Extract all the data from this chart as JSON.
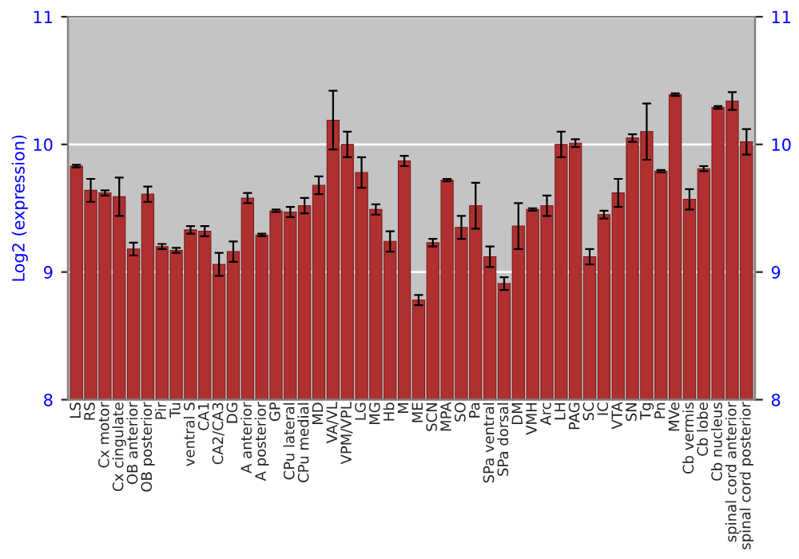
{
  "chart_data": {
    "type": "bar",
    "ylabel": "Log2 (expression)",
    "categories": [
      "LS",
      "RS",
      "Cx motor",
      "Cx cingulate",
      "OB anterior",
      "OB posterior",
      "Pir",
      "Tu",
      "ventral S",
      "CA1",
      "CA2/CA3",
      "DG",
      "A anterior",
      "A posterior",
      "GP",
      "CPu lateral",
      "CPu medial",
      "MD",
      "VA/VL",
      "VPM/VPL",
      "LG",
      "MG",
      "Hb",
      "M",
      "ME",
      "SCN",
      "MPA",
      "SO",
      "Pa",
      "SPa ventral",
      "SPa dorsal",
      "DM",
      "VMH",
      "Arc",
      "LH",
      "PAG",
      "SC",
      "IC",
      "VTA",
      "SN",
      "Tg",
      "Pn",
      "MVe",
      "Cb vermis",
      "Cb lobe",
      "Cb nucleus",
      "spinal cord anterior",
      "spinal cord posterior"
    ],
    "series": [
      {
        "color": "#b03030",
        "values": [
          9.83,
          9.64,
          9.62,
          9.59,
          9.18,
          9.61,
          9.2,
          9.17,
          9.33,
          9.32,
          9.06,
          9.16,
          9.58,
          9.29,
          9.48,
          9.47,
          9.52,
          9.68,
          10.19,
          10.0,
          9.78,
          9.49,
          9.24,
          9.87,
          8.78,
          9.23,
          9.72,
          9.35,
          9.52,
          9.12,
          8.91,
          9.36,
          9.49,
          9.52,
          10.0,
          10.01,
          9.12,
          9.45,
          9.62,
          10.05,
          10.1,
          9.79,
          10.39,
          9.57,
          9.81,
          10.29,
          10.34,
          10.02
        ],
        "errors": [
          0.01,
          0.09,
          0.02,
          0.15,
          0.05,
          0.06,
          0.02,
          0.02,
          0.03,
          0.04,
          0.09,
          0.08,
          0.04,
          0.01,
          0.01,
          0.04,
          0.06,
          0.07,
          0.23,
          0.1,
          0.12,
          0.04,
          0.08,
          0.04,
          0.04,
          0.03,
          0.01,
          0.09,
          0.18,
          0.08,
          0.05,
          0.18,
          0.01,
          0.08,
          0.1,
          0.03,
          0.06,
          0.03,
          0.11,
          0.03,
          0.22,
          0.01,
          0.01,
          0.08,
          0.02,
          0.01,
          0.07,
          0.1
        ]
      }
    ],
    "ylim": [
      8,
      11
    ],
    "yticks": [
      8,
      9,
      10,
      11
    ],
    "y2lim": [
      8,
      11
    ],
    "y2ticks": [
      8,
      9,
      10,
      11
    ],
    "grid": "y"
  }
}
